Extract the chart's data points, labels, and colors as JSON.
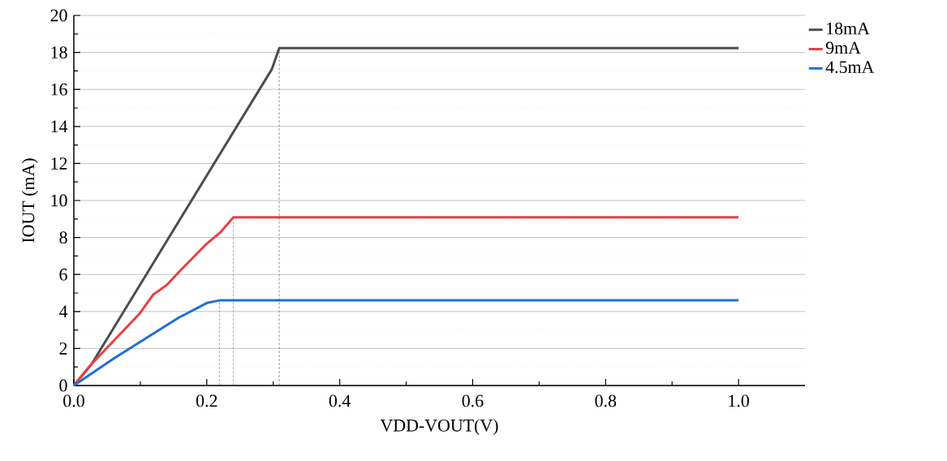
{
  "chart_data": {
    "type": "line",
    "xlabel": "VDD-VOUT(V)",
    "ylabel": "IOUT (mA)",
    "xlim": [
      0,
      1.1
    ],
    "ylim": [
      0,
      20
    ],
    "xticks": [
      {
        "value": 0,
        "label": "0.0"
      },
      {
        "value": 0.2,
        "label": "0.2"
      },
      {
        "value": 0.4,
        "label": "0.4"
      },
      {
        "value": 0.6,
        "label": "0.6"
      },
      {
        "value": 0.8,
        "label": "0.8"
      },
      {
        "value": 1.0,
        "label": "1.0"
      }
    ],
    "yticks": [
      0,
      2,
      4,
      6,
      8,
      10,
      12,
      14,
      16,
      18,
      20
    ],
    "grid": "y",
    "legend": "top right",
    "series": [
      {
        "name": "18mA",
        "color": "#4d4d4d",
        "x": [
          0,
          0.027,
          0.2,
          0.298,
          0.309,
          1.0
        ],
        "values": [
          0,
          1.17,
          11.35,
          17.1,
          18.23,
          18.23
        ]
      },
      {
        "name": "9mA",
        "color": "#e84040",
        "x": [
          0,
          0.027,
          0.0985,
          0.119,
          0.139,
          0.16,
          0.198,
          0.22,
          0.24,
          1.0
        ],
        "values": [
          0,
          1.17,
          3.87,
          4.9,
          5.41,
          6.21,
          7.6,
          8.26,
          9.09,
          9.09
        ]
      },
      {
        "name": "4.5mA",
        "color": "#1f6fd6",
        "x": [
          0,
          0.06,
          0.157,
          0.2,
          0.219,
          1.0
        ],
        "values": [
          0,
          1.46,
          3.65,
          4.46,
          4.6,
          4.6
        ]
      },
      {
        "type": "line",
        "line_style": "dashed",
        "color": "#4d4d4d",
        "x": [
          0.309,
          0.309
        ],
        "values": [
          0,
          18.23
        ]
      },
      {
        "type": "line",
        "line_style": "dashed",
        "color": "#e84040",
        "x": [
          0.24,
          0.24
        ],
        "values": [
          0,
          9.09
        ]
      },
      {
        "type": "line",
        "line_style": "dashed",
        "color": "#1f6fd6",
        "x": [
          0.219,
          0.219
        ],
        "values": [
          0,
          4.6
        ]
      }
    ]
  }
}
